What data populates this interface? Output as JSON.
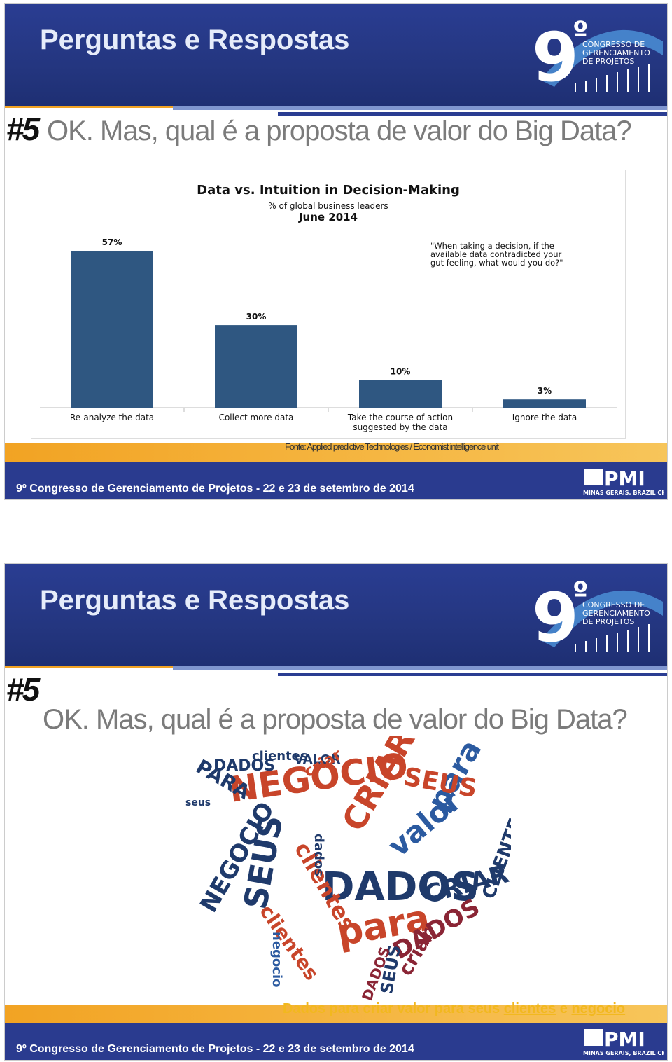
{
  "brand": {
    "number": "9",
    "ordinal": "º",
    "congress_lines": [
      "CONGRESSO DE",
      "GERENCIAMENTO",
      "DE PROJETOS"
    ],
    "pmi": "PMI",
    "chapter": "MINAS GERAIS, BRAZIL CHAPTER"
  },
  "slides": [
    {
      "title": "Perguntas e Respostas",
      "number": "#5",
      "question": "OK. Mas, qual é a proposta de valor do Big Data?",
      "source": "Fonte: Applied predictive Technologies / Economist intelligence unit",
      "footer": "9º Congresso de Gerenciamento de Projetos - 22 e 23 de setembro de 2014"
    },
    {
      "title": "Perguntas e Respostas",
      "number": "#5",
      "question": "OK. Mas, qual é a proposta de valor do Big Data?",
      "caption": [
        "Dados para criar valor para seus",
        "clientes",
        "e",
        "negocio"
      ],
      "footer": "9º Congresso de Gerenciamento de Projetos - 22 e 23 de setembro de 2014"
    }
  ],
  "chart_data": {
    "type": "bar",
    "title": "Data vs. Intuition in Decision-Making",
    "subtitle": "% of global business leaders",
    "date": "June 2014",
    "annotation": [
      "\"When taking a decision, if the",
      "available data contradicted your",
      "gut feeling, what would you do?\""
    ],
    "categories": [
      [
        "Re-analyze the data"
      ],
      [
        "Collect more data"
      ],
      [
        "Take the course of action",
        "suggested by the data"
      ],
      [
        "Ignore the data"
      ]
    ],
    "values": [
      57,
      30,
      10,
      3
    ],
    "value_labels": [
      "57%",
      "30%",
      "10%",
      "3%"
    ],
    "color": "#2f5781"
  },
  "word_cloud": {
    "words": [
      {
        "text": "NEGOCIO",
        "color": "#c8452a"
      },
      {
        "text": "CRIAR",
        "color": "#c8452a"
      },
      {
        "text": "SEUS",
        "color": "#1f3a6b"
      },
      {
        "text": "valor",
        "color": "#2b5aa0"
      },
      {
        "text": "para",
        "color": "#2b5aa0"
      },
      {
        "text": "DADOS",
        "color": "#1f3a6b"
      },
      {
        "text": "para",
        "color": "#c8452a"
      },
      {
        "text": "CRIAR",
        "color": "#1f3a6b"
      },
      {
        "text": "clientes",
        "color": "#c8452a"
      },
      {
        "text": "clientes",
        "color": "#c8452a"
      },
      {
        "text": "NEGOCIO",
        "color": "#1f3a6b"
      },
      {
        "text": "PARA",
        "color": "#1f3a6b"
      },
      {
        "text": "DADOS",
        "color": "#1f3a6b"
      },
      {
        "text": "SEUS",
        "color": "#c8452a"
      },
      {
        "text": "CLIENTES",
        "color": "#1f3a6b"
      },
      {
        "text": "DADOS",
        "color": "#8a2535"
      },
      {
        "text": "dados",
        "color": "#1f3a6b"
      },
      {
        "text": "criar",
        "color": "#8a2535"
      },
      {
        "text": "VALOR",
        "color": "#1f3a6b"
      },
      {
        "text": "clientes",
        "color": "#1f3a6b"
      },
      {
        "text": "seus",
        "color": "#1f3a6b"
      },
      {
        "text": "SEUS",
        "color": "#1f3a6b"
      },
      {
        "text": "criar",
        "color": "#c8452a"
      },
      {
        "text": "negocio",
        "color": "#2b5aa0"
      },
      {
        "text": "DADOS",
        "color": "#8a2535"
      }
    ]
  }
}
